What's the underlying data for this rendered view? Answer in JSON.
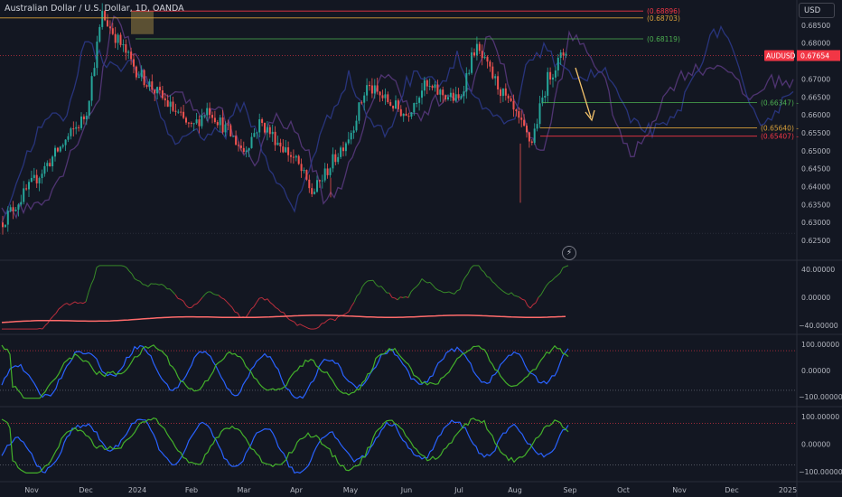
{
  "header": {
    "title": "Australian Dollar / U.S. Dollar, 1D, OANDA",
    "currency_button": "USD",
    "symbol_label": "AUDUSD",
    "current_price": "0.67654"
  },
  "colors": {
    "background": "#131722",
    "up": "#26a69a",
    "down": "#ef5350",
    "green_line": "#4caf50",
    "red_line": "#f23645",
    "orange_line": "#d8a03a",
    "purple_overlay": "#5b3a80",
    "blue_overlay": "#2d3a8c",
    "blue_osc": "#2962ff",
    "green_osc": "#43b02a",
    "arrow": "#f3c26b"
  },
  "chart_data": {
    "type": "candlestick",
    "x_ticks": [
      "Nov",
      "Dec",
      "2024",
      "Feb",
      "Mar",
      "Apr",
      "May",
      "Jun",
      "Jul",
      "Aug",
      "Sep",
      "Oct",
      "Nov",
      "Dec",
      "2025"
    ],
    "price_axis": {
      "ylim": [
        0.623,
        0.6885
      ],
      "ticks": [
        "0.68500",
        "0.68000",
        "0.67000",
        "0.66500",
        "0.66000",
        "0.65500",
        "0.65000",
        "0.64500",
        "0.64000",
        "0.63500",
        "0.63000",
        "0.62500"
      ]
    },
    "levels": [
      {
        "label": "(0.68896)",
        "value": 0.68896,
        "color": "#f23645"
      },
      {
        "label": "(0.68703)",
        "value": 0.68703,
        "color": "#d8a03a"
      },
      {
        "label": "(0.68119)",
        "value": 0.68119,
        "color": "#4caf50"
      },
      {
        "label": "(0.66347)",
        "value": 0.66347,
        "color": "#4caf50"
      },
      {
        "label": "(0.65640)",
        "value": 0.6564,
        "color": "#d8a03a"
      },
      {
        "label": "(0.65407)",
        "value": 0.65407,
        "color": "#f23645"
      }
    ],
    "price_path": [
      [
        "Nov",
        0.63
      ],
      [
        "Dec",
        0.66
      ],
      [
        "Dec",
        0.688
      ],
      [
        "2024",
        0.672
      ],
      [
        "Feb",
        0.656
      ],
      [
        "Feb",
        0.662
      ],
      [
        "Mar",
        0.65
      ],
      [
        "Mar",
        0.658
      ],
      [
        "Apr",
        0.647
      ],
      [
        "Apr",
        0.638
      ],
      [
        "May",
        0.655
      ],
      [
        "May",
        0.668
      ],
      [
        "Jun",
        0.66
      ],
      [
        "Jun",
        0.668
      ],
      [
        "Jul",
        0.664
      ],
      [
        "Jul",
        0.679
      ],
      [
        "Aug",
        0.66
      ],
      [
        "Aug",
        0.652
      ],
      [
        "Aug",
        0.67
      ],
      [
        "Sep",
        0.68
      ],
      [
        "Sep",
        0.6765
      ]
    ],
    "overlay_note": "Two translucent projected paths (purple and blue) extend to Jan 2025",
    "indicator_panes": [
      {
        "name": "pane1",
        "ticks": [
          "40.00000",
          "0.00000",
          "-40.00000"
        ],
        "ylim": [
          -50,
          50
        ]
      },
      {
        "name": "pane2",
        "ticks": [
          "100.00000",
          "0.00000",
          "-100.00000"
        ],
        "ylim": [
          -130,
          130
        ]
      },
      {
        "name": "pane3",
        "ticks": [
          "100.00000",
          "0.00000",
          "-100.00000"
        ],
        "ylim": [
          -130,
          130
        ]
      }
    ]
  }
}
